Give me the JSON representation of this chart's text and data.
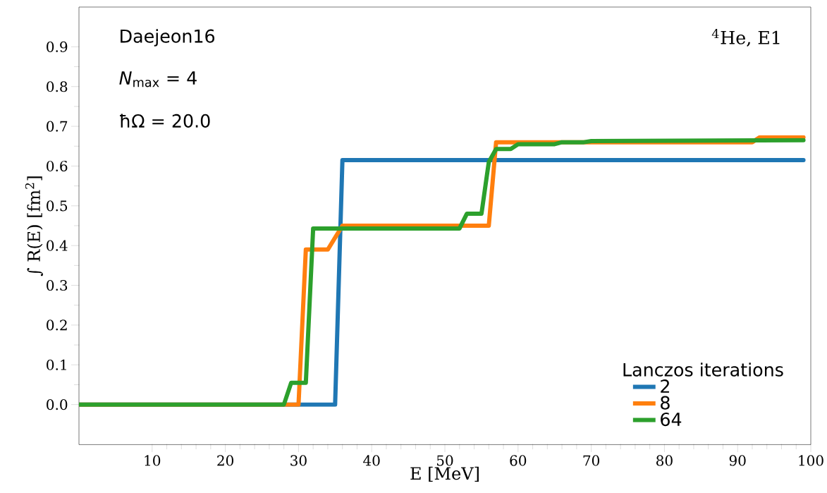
{
  "chart_data": {
    "type": "line",
    "xlabel": "E [MeV]",
    "ylabel": "∫ R(E) [fm$^{2}$]",
    "legend_title": "Lanczos iterations",
    "legend": "bottom right",
    "grid": false,
    "marker": "none",
    "line_style": "solid",
    "annotations": [
      "Daejeon16",
      "*N*$_{max}$ = 4",
      "ħΩ = 20.0",
      "$^{4}$He, E1"
    ],
    "xlim": [
      0,
      100
    ],
    "ylim": [
      -0.1,
      1.0
    ],
    "xticks": [
      10,
      20,
      30,
      40,
      50,
      60,
      70,
      80,
      90,
      100
    ],
    "yticks": [
      {
        "value": 0,
        "label": "0.0"
      },
      {
        "value": 0.1,
        "label": "0.1"
      },
      {
        "value": 0.2,
        "label": "0.2"
      },
      {
        "value": 0.3,
        "label": "0.3"
      },
      {
        "value": 0.4,
        "label": "0.4"
      },
      {
        "value": 0.5,
        "label": "0.5"
      },
      {
        "value": 0.6,
        "label": "0.6"
      },
      {
        "value": 0.7,
        "label": "0.7"
      },
      {
        "value": 0.8,
        "label": "0.8"
      },
      {
        "value": 0.9,
        "label": "0.9"
      }
    ],
    "series": [
      {
        "name": "2",
        "color": "#1f77b4",
        "x": [
          0,
          35,
          36,
          99
        ],
        "values": [
          0,
          0,
          0.615,
          0.615
        ]
      },
      {
        "name": "8",
        "color": "#ff7f0e",
        "x": [
          0,
          30,
          31,
          34,
          36,
          56,
          57,
          92,
          93,
          99
        ],
        "values": [
          0,
          0,
          0.39,
          0.39,
          0.45,
          0.45,
          0.66,
          0.66,
          0.672,
          0.672
        ]
      },
      {
        "name": "64",
        "color": "#2ca02c",
        "x": [
          0,
          28,
          29,
          31,
          32,
          52,
          53,
          55,
          56,
          57,
          59,
          60,
          65,
          66,
          69,
          70,
          99
        ],
        "values": [
          0,
          0,
          0.055,
          0.055,
          0.443,
          0.443,
          0.48,
          0.48,
          0.61,
          0.643,
          0.643,
          0.655,
          0.655,
          0.66,
          0.66,
          0.663,
          0.665
        ]
      }
    ]
  }
}
